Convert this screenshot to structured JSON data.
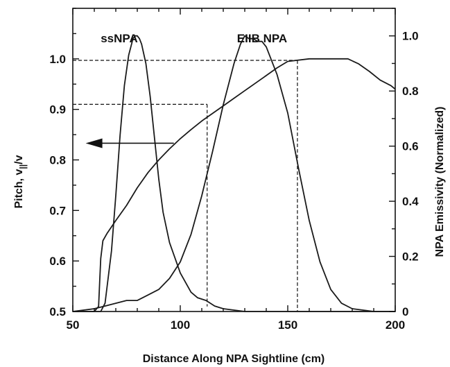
{
  "chart_data": {
    "type": "line",
    "xlabel": "Distance Along NPA Sightline (cm)",
    "ylabel_left": {
      "main": "Pitch, v",
      "subscript": "||",
      "suffix": "/v"
    },
    "ylabel_right": "NPA Emissivity (Normalized)",
    "xlim": [
      50,
      200
    ],
    "ylim_left": [
      0.5,
      1.1
    ],
    "ylim_right": [
      0,
      1.1
    ],
    "x_ticks": [
      50,
      100,
      150,
      200
    ],
    "x_tick_labels": [
      "50",
      "100",
      "150",
      "200"
    ],
    "y_left_ticks": [
      0.5,
      0.6,
      0.7,
      0.8,
      0.9,
      1.0
    ],
    "y_left_tick_labels": [
      "0.5",
      "0.6",
      "0.7",
      "0.8",
      "0.9",
      "1.0"
    ],
    "y_right_ticks": [
      0,
      0.2,
      0.4,
      0.6,
      0.8,
      1.0
    ],
    "y_right_tick_labels": [
      "0",
      "0.2",
      "0.4",
      "0.6",
      "0.8",
      "1.0"
    ],
    "annotations": {
      "ssnpa_label": "ssNPA",
      "eiib_label": "EIIB NPA"
    },
    "series": [
      {
        "axis": "left",
        "x": [
          50,
          60,
          62,
          62.5,
          63,
          64,
          66,
          70,
          75,
          80,
          85,
          90,
          95,
          100,
          105,
          110,
          115,
          120,
          125,
          130,
          135,
          140,
          145,
          150,
          160,
          170,
          178,
          183,
          188,
          193,
          198,
          200
        ],
        "values": [
          0.5,
          0.5,
          0.51,
          0.56,
          0.605,
          0.64,
          0.655,
          0.68,
          0.71,
          0.745,
          0.775,
          0.8,
          0.822,
          0.842,
          0.86,
          0.877,
          0.892,
          0.907,
          0.922,
          0.937,
          0.952,
          0.967,
          0.982,
          0.995,
          1.0,
          1.0,
          1.0,
          0.99,
          0.975,
          0.958,
          0.947,
          0.94
        ]
      },
      {
        "axis": "right",
        "x": [
          50,
          60,
          63,
          65,
          68,
          70,
          72,
          74,
          76,
          78,
          79,
          80,
          81,
          82,
          84,
          86,
          88,
          90,
          92,
          95,
          100,
          105,
          108,
          112,
          116,
          120,
          130,
          150,
          200
        ],
        "values": [
          0,
          0,
          0,
          0.03,
          0.22,
          0.42,
          0.64,
          0.82,
          0.93,
          0.99,
          1.0,
          1.0,
          0.99,
          0.97,
          0.9,
          0.78,
          0.63,
          0.48,
          0.36,
          0.25,
          0.14,
          0.07,
          0.05,
          0.04,
          0.02,
          0.01,
          0,
          0,
          0
        ]
      },
      {
        "axis": "right",
        "x": [
          50,
          60,
          65,
          70,
          75,
          80,
          85,
          90,
          95,
          100,
          105,
          110,
          115,
          120,
          125,
          128,
          130,
          132,
          134,
          136,
          138,
          140,
          145,
          150,
          155,
          160,
          165,
          170,
          175,
          180,
          190,
          200
        ],
        "values": [
          0,
          0.01,
          0.02,
          0.03,
          0.04,
          0.04,
          0.06,
          0.08,
          0.12,
          0.18,
          0.28,
          0.42,
          0.58,
          0.75,
          0.9,
          0.97,
          1.0,
          0.99,
          0.99,
          0.98,
          0.98,
          0.96,
          0.86,
          0.72,
          0.52,
          0.33,
          0.18,
          0.08,
          0.03,
          0.01,
          0,
          0
        ]
      }
    ],
    "guides": [
      {
        "axis": "left",
        "x1": 50,
        "x2": 112.5,
        "y": 0.91,
        "drop_to_right": 0.51
      },
      {
        "axis": "left",
        "x1": 50,
        "x2": 154.5,
        "y": 0.997,
        "drop_to_right": 0.5
      }
    ],
    "arrow": {
      "axis": "left",
      "x_from": 97,
      "x_to": 56,
      "y": 0.833
    }
  }
}
